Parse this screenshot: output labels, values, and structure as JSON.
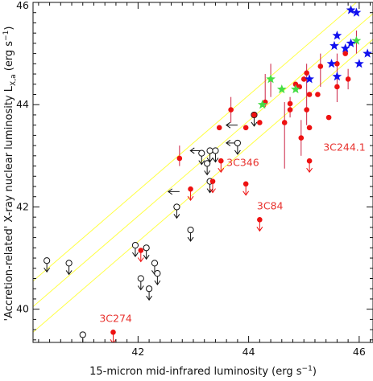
{
  "chart_data": {
    "type": "scatter",
    "xlabel": "15-micron mid-infrared luminosity (erg s",
    "xlabel_sup": "−1",
    "xlabel_end": ")",
    "ylabel": "'Accretion-related' X-ray nuclear luminosity L",
    "ylabel_sub": "X,a",
    "ylabel_units": " (erg s",
    "ylabel_sup": "−1",
    "ylabel_end": ")",
    "xlim": [
      40.1,
      46.25
    ],
    "ylim": [
      39.35,
      46.0
    ],
    "xticks": [
      42,
      44,
      46
    ],
    "yticks": [
      40,
      42,
      44,
      46
    ],
    "colors": {
      "fit_lines": "#ffff44",
      "detections": "#ee1111",
      "upper_limit_arrows": "#ee1111",
      "non_detections": "#111111",
      "blue_stars": "#1010ee",
      "green_stars": "#44dd44",
      "error_bars": "#cc2244",
      "annotations": "#e8322e"
    },
    "fit_lines": [
      {
        "x": [
          40.1,
          46.25
        ],
        "y": [
          40.55,
          46.28
        ]
      },
      {
        "x": [
          40.1,
          46.25
        ],
        "y": [
          40.05,
          45.78
        ]
      },
      {
        "x": [
          40.1,
          46.25
        ],
        "y": [
          39.55,
          45.28
        ]
      }
    ],
    "red_detections": [
      [
        42.75,
        42.95
      ],
      [
        43.47,
        43.55
      ],
      [
        43.68,
        43.9
      ],
      [
        43.95,
        43.55
      ],
      [
        44.1,
        43.8
      ],
      [
        44.3,
        44.05
      ],
      [
        44.65,
        43.65
      ],
      [
        44.75,
        44.02
      ],
      [
        44.75,
        43.9
      ],
      [
        44.85,
        44.4
      ],
      [
        44.92,
        44.35
      ],
      [
        45.0,
        44.5
      ],
      [
        45.05,
        44.62
      ],
      [
        45.1,
        44.2
      ],
      [
        44.95,
        43.35
      ],
      [
        45.05,
        43.9
      ],
      [
        45.1,
        43.55
      ],
      [
        45.25,
        44.2
      ],
      [
        45.3,
        44.75
      ],
      [
        45.6,
        44.35
      ],
      [
        45.6,
        44.8
      ],
      [
        45.75,
        45.0
      ],
      [
        45.8,
        44.5
      ],
      [
        44.2,
        43.65
      ],
      [
        45.45,
        43.75
      ]
    ],
    "red_upper_limits": [
      [
        42.05,
        41.15
      ],
      [
        42.95,
        42.35
      ],
      [
        43.35,
        42.5
      ],
      [
        43.5,
        42.9
      ],
      [
        43.95,
        42.45
      ],
      [
        44.2,
        41.75
      ],
      [
        45.1,
        42.9
      ],
      [
        41.55,
        39.55
      ]
    ],
    "error_bars": [
      {
        "x": 42.75,
        "y_low": 42.8,
        "y_high": 43.2
      },
      {
        "x": 43.68,
        "y_low": 43.65,
        "y_high": 44.15
      },
      {
        "x": 44.3,
        "y_low": 43.95,
        "y_high": 44.6
      },
      {
        "x": 44.65,
        "y_low": 42.75,
        "y_high": 44.05
      },
      {
        "x": 44.75,
        "y_low": 43.75,
        "y_high": 44.15
      },
      {
        "x": 44.95,
        "y_low": 43.0,
        "y_high": 43.7
      },
      {
        "x": 45.05,
        "y_low": 43.6,
        "y_high": 44.8
      },
      {
        "x": 45.3,
        "y_low": 44.35,
        "y_high": 45.0
      },
      {
        "x": 45.6,
        "y_low": 44.05,
        "y_high": 45.0
      },
      {
        "x": 45.8,
        "y_low": 44.3,
        "y_high": 44.7
      },
      {
        "x": 44.4,
        "y_low": 44.15,
        "y_high": 44.8
      },
      {
        "x": 45.95,
        "y_low": 45.0,
        "y_high": 45.45
      }
    ],
    "black_upper_limits": [
      [
        40.35,
        40.95
      ],
      [
        40.75,
        40.9
      ],
      [
        41.0,
        39.5
      ],
      [
        41.95,
        41.25
      ],
      [
        42.15,
        41.2
      ],
      [
        42.05,
        40.6
      ],
      [
        42.2,
        40.4
      ],
      [
        42.3,
        40.9
      ],
      [
        42.35,
        40.7
      ],
      [
        42.7,
        42.0
      ],
      [
        42.95,
        41.55
      ],
      [
        43.15,
        43.05
      ],
      [
        43.25,
        42.85
      ],
      [
        43.3,
        43.1
      ],
      [
        43.4,
        43.1
      ],
      [
        43.3,
        42.5
      ],
      [
        43.8,
        43.25
      ],
      [
        44.1,
        43.8
      ]
    ],
    "black_left_limits": [
      [
        42.75,
        42.3
      ],
      [
        43.15,
        43.1
      ],
      [
        43.8,
        43.25
      ],
      [
        43.8,
        43.6
      ]
    ],
    "blue_stars": [
      [
        45.1,
        44.5
      ],
      [
        45.5,
        44.8
      ],
      [
        45.55,
        45.15
      ],
      [
        45.6,
        45.35
      ],
      [
        45.6,
        44.55
      ],
      [
        45.75,
        45.1
      ],
      [
        45.85,
        45.2
      ],
      [
        45.85,
        45.85
      ],
      [
        45.95,
        45.8
      ],
      [
        46.0,
        44.8
      ],
      [
        46.15,
        45.0
      ]
    ],
    "green_stars": [
      [
        44.25,
        44.0
      ],
      [
        44.4,
        44.5
      ],
      [
        44.6,
        44.3
      ],
      [
        44.85,
        44.3
      ],
      [
        45.95,
        45.25
      ]
    ],
    "annotations": [
      {
        "text": "3C244.1",
        "x": 45.35,
        "y": 43.1
      },
      {
        "text": "3C346",
        "x": 43.6,
        "y": 42.8
      },
      {
        "text": "3C84",
        "x": 44.15,
        "y": 41.95
      },
      {
        "text": "3C274",
        "x": 41.3,
        "y": 39.75
      }
    ]
  }
}
